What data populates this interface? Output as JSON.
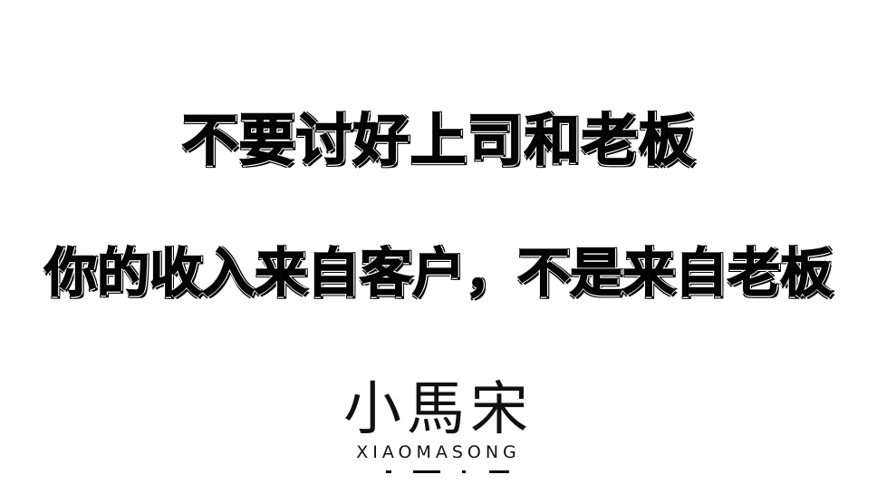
{
  "headline": "不要讨好上司和老板",
  "subheadline": "你的收入来自客户，不是来自老板",
  "logo": {
    "mark": "小馬宋",
    "wordmark": "XIAOMASONG"
  }
}
